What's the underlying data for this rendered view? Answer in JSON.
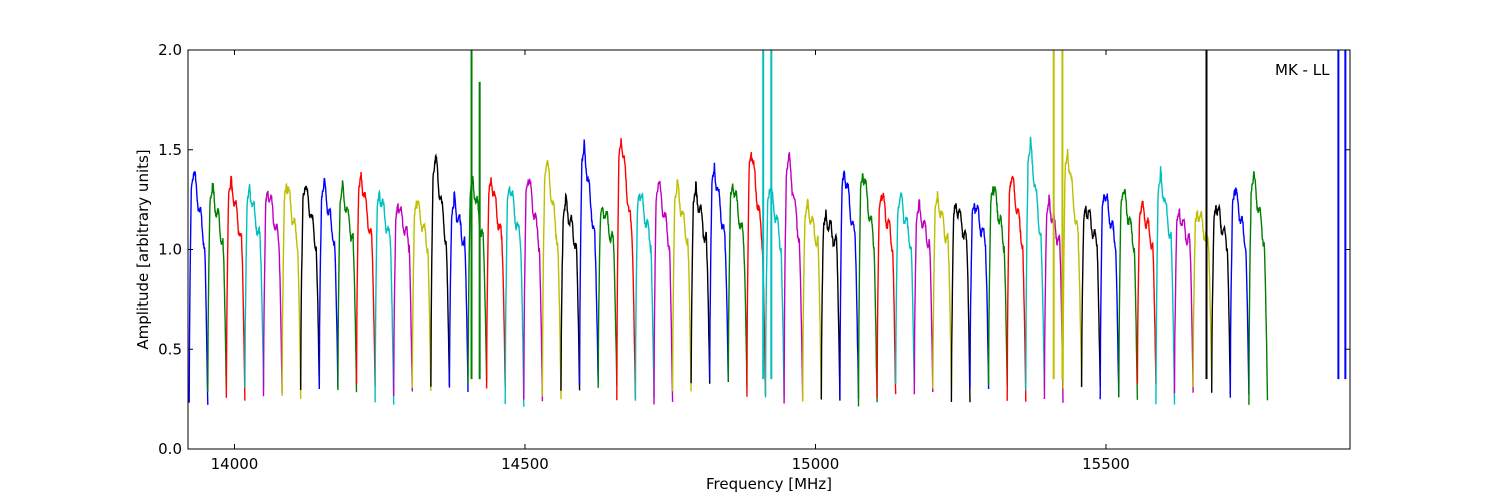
{
  "chart_data": {
    "type": "line",
    "title": "",
    "xlabel": "Frequency [MHz]",
    "ylabel": "Amplitude [arbitrary units]",
    "xlim": [
      13920,
      15920
    ],
    "ylim": [
      0.0,
      2.0
    ],
    "xticks": [
      14000,
      14500,
      15000,
      15500
    ],
    "yticks": [
      0.0,
      0.5,
      1.0,
      1.5,
      2.0
    ],
    "ytick_labels": [
      "0.0",
      "0.5",
      "1.0",
      "1.5",
      "2.0"
    ],
    "grid": false,
    "annotation": "MK - LL",
    "colors": [
      "#0000ff",
      "#008000",
      "#ff0000",
      "#00bfbf",
      "#bf00bf",
      "#bfbf00",
      "#000000"
    ],
    "series_description": "Consecutive passband segments of 32 MHz each, cycling colours blue, green, red, cyan, magenta, olive, black",
    "segment_width_mhz": 32,
    "segment_start_mhz": 13922,
    "segment_peaks": [
      1.38,
      1.3,
      1.34,
      1.31,
      1.3,
      1.33,
      1.32,
      1.32,
      1.31,
      1.37,
      1.29,
      1.23,
      1.24,
      1.45,
      1.24,
      1.35,
      1.36,
      1.32,
      1.36,
      1.43,
      1.23,
      1.51,
      1.22,
      1.56,
      1.29,
      1.33,
      1.31,
      1.3,
      1.41,
      1.34,
      1.49,
      1.31,
      1.46,
      1.22,
      1.17,
      1.4,
      1.39,
      1.27,
      1.26,
      1.21,
      1.26,
      1.24,
      1.24,
      1.32,
      1.36,
      1.52,
      1.23,
      1.49,
      1.22,
      1.29,
      1.29,
      1.22,
      1.37,
      1.19,
      1.2,
      1.22,
      1.3,
      1.36
    ],
    "spikes": [
      {
        "x": 14408,
        "y": 2.0,
        "color": "#008000"
      },
      {
        "x": 14422,
        "y": 1.84,
        "color": "#008000"
      },
      {
        "x": 14910,
        "y": 2.0,
        "color": "#00bfbf"
      },
      {
        "x": 14924,
        "y": 2.0,
        "color": "#00bfbf"
      },
      {
        "x": 15410,
        "y": 2.0,
        "color": "#bfbf00"
      },
      {
        "x": 15425,
        "y": 2.0,
        "color": "#bfbf00"
      },
      {
        "x": 15673,
        "y": 2.0,
        "color": "#000000"
      },
      {
        "x": 15900,
        "y": 2.0,
        "color": "#0000ff"
      },
      {
        "x": 15912,
        "y": 2.0,
        "color": "#0000ff"
      }
    ],
    "ymin_trough": 0.22
  }
}
